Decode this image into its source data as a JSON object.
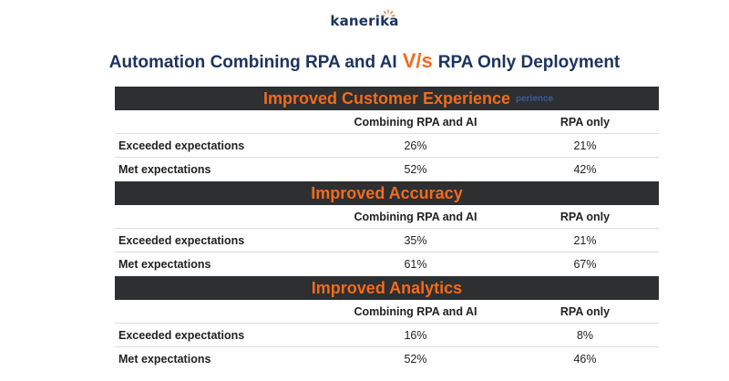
{
  "header": {
    "brand": "kanerika",
    "title_part1": "Automation Combining RPA and AI",
    "title_vs": "V/s",
    "title_part2": "RPA Only Deployment"
  },
  "colors": {
    "navy": "#1d3461",
    "orange": "#f26b1d",
    "bar": "#2d2f31"
  },
  "chart_data": {
    "type": "table",
    "columns": [
      "",
      "Combining RPA and AI",
      "RPA only"
    ],
    "sections": [
      {
        "name": "Improved Customer Experience",
        "rows": [
          {
            "label": "Exceeded expectations",
            "values": [
              "26%",
              "21%"
            ]
          },
          {
            "label": "Met expectations",
            "values": [
              "52%",
              "42%"
            ]
          }
        ]
      },
      {
        "name": "Improved Accuracy",
        "rows": [
          {
            "label": "Exceeded expectations",
            "values": [
              "35%",
              "21%"
            ]
          },
          {
            "label": "Met expectations",
            "values": [
              "61%",
              "67%"
            ]
          }
        ]
      },
      {
        "name": "Improved Analytics",
        "rows": [
          {
            "label": "Exceeded expectations",
            "values": [
              "16%",
              "8%"
            ]
          },
          {
            "label": "Met expectations",
            "values": [
              "52%",
              "46%"
            ]
          }
        ]
      }
    ],
    "ghost_text": "perience"
  }
}
